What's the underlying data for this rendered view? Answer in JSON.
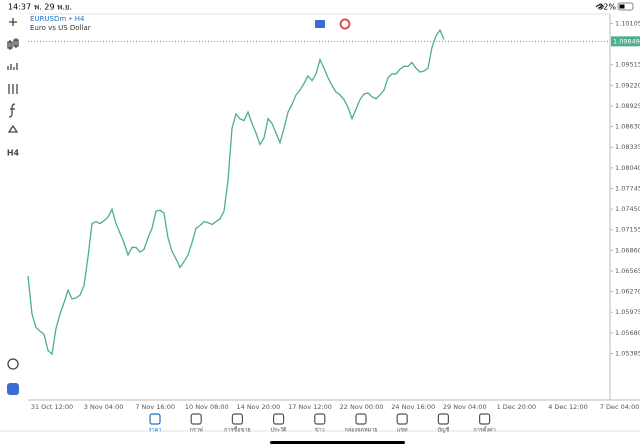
{
  "status_bar": {
    "time": "14:37",
    "date": "พ. 29 พ.ย.",
    "battery": "32%"
  },
  "toolbar": {
    "timeframe": "H4"
  },
  "chart_data": {
    "type": "line",
    "title": "EURUSDm • H4",
    "subtitle": "Euro vs US Dollar",
    "color": "#4caf8a",
    "values": [
      1.06493,
      1.05948,
      1.05757,
      1.05703,
      1.05662,
      1.0543,
      1.05375,
      1.05743,
      1.05948,
      1.06111,
      1.06289,
      1.06166,
      1.0618,
      1.0622,
      1.06357,
      1.06766,
      1.07243,
      1.0727,
      1.07243,
      1.07284,
      1.07338,
      1.07447,
      1.07243,
      1.07106,
      1.0697,
      1.06793,
      1.06902,
      1.06902,
      1.06834,
      1.06875,
      1.07038,
      1.07175,
      1.0742,
      1.07434,
      1.07393,
      1.07038,
      1.06847,
      1.06738,
      1.06616,
      1.06698,
      1.06793,
      1.0697,
      1.07175,
      1.07215,
      1.0727,
      1.07256,
      1.07229,
      1.0727,
      1.07311,
      1.0742,
      1.07856,
      1.08606,
      1.0881,
      1.08742,
      1.08715,
      1.08837,
      1.08674,
      1.08538,
      1.08374,
      1.08469,
      1.08742,
      1.08674,
      1.08538,
      1.08401,
      1.08606,
      1.08837,
      1.08946,
      1.09083,
      1.09151,
      1.09246,
      1.09355,
      1.09287,
      1.09383,
      1.09587,
      1.09464,
      1.09328,
      1.09219,
      1.09124,
      1.09083,
      1.09015,
      1.08906,
      1.08742,
      1.08878,
      1.09015,
      1.09096,
      1.0911,
      1.09056,
      1.09028,
      1.09083,
      1.09151,
      1.09328,
      1.09383,
      1.09383,
      1.09451,
      1.09492,
      1.09492,
      1.09546,
      1.09464,
      1.0941,
      1.09424,
      1.09464,
      1.09764,
      1.09928,
      1.1001,
      1.09873
    ],
    "current_price": 1.09849,
    "ylim": [
      1.0472,
      1.1024
    ],
    "yticks": [
      1.10105,
      1.09515,
      {
        "value": 1.0922,
        "label": "1.09220"
      },
      1.08925,
      {
        "value": 1.0863,
        "label": "1.08630"
      },
      1.08335,
      {
        "value": 1.0804,
        "label": "1.08040"
      },
      1.07745,
      {
        "value": 1.0745,
        "label": "1.07450"
      },
      1.07155,
      {
        "value": 1.0686,
        "label": "1.06860"
      },
      1.06565,
      {
        "value": 1.0627,
        "label": "1.06270"
      },
      1.05975,
      {
        "value": 1.0568,
        "label": "1.05680"
      },
      1.05385
    ],
    "x_labels": [
      "31 Oct 12:00",
      "3 Nov 04:00",
      "7 Nov 16:00",
      "10 Nov 08:00",
      "14 Nov 20:00",
      "17 Nov 12:00",
      "22 Nov 00:00",
      "24 Nov 16:00",
      "29 Nov 04:00",
      "1 Dec 20:00",
      "4 Dec 12:00",
      "7 Dec 04:00"
    ]
  },
  "nav": {
    "items": [
      "ราคา",
      "กราฟ",
      "การซื้อขาย",
      "ประวัติ",
      "ข่าว",
      "กล่องจดหมาย",
      "แชท",
      "บัญชี",
      "การตั้งค่า"
    ]
  }
}
